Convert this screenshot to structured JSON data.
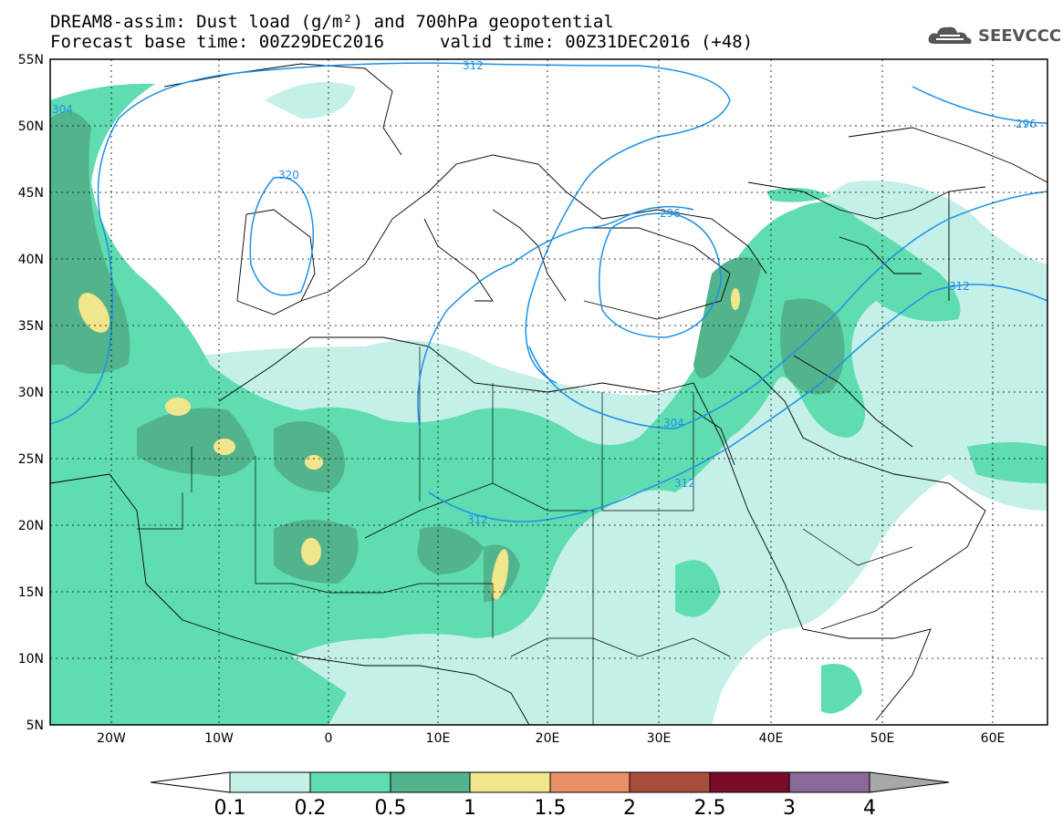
{
  "title": {
    "line1": "DREAM8-assim: Dust load (g/m²) and 700hPa geopotential",
    "line2a": "Forecast base time: 00Z29DEC2016",
    "line2b": "valid time: 00Z31DEC2016 (+48)"
  },
  "logo": {
    "text": "SEEVCCC",
    "icon": "cloud-icon"
  },
  "map": {
    "lat_ticks": [
      "55N",
      "50N",
      "45N",
      "40N",
      "35N",
      "30N",
      "25N",
      "20N",
      "15N",
      "10N",
      "5N"
    ],
    "lon_ticks": [
      "20W",
      "10W",
      "0",
      "10E",
      "20E",
      "30E",
      "40E",
      "50E",
      "60E"
    ],
    "contour_labels": [
      "312",
      "320",
      "296",
      "304",
      "304",
      "312",
      "312",
      "296",
      "312"
    ]
  },
  "legend": {
    "ticks": [
      "0.1",
      "0.2",
      "0.5",
      "1",
      "1.5",
      "2",
      "2.5",
      "3",
      "4"
    ],
    "colors": [
      "#c4f0e8",
      "#5fdcb0",
      "#52b48c",
      "#f2e68c",
      "#e99066",
      "#a84c3c",
      "#7a0c2a",
      "#8a6898",
      "#a8a8a8"
    ]
  },
  "colors": {
    "level1": "#c4f0e8",
    "level2": "#5fdcb0",
    "level3": "#52b48c",
    "level4": "#f2e68c",
    "contour": "#1e90e8"
  }
}
